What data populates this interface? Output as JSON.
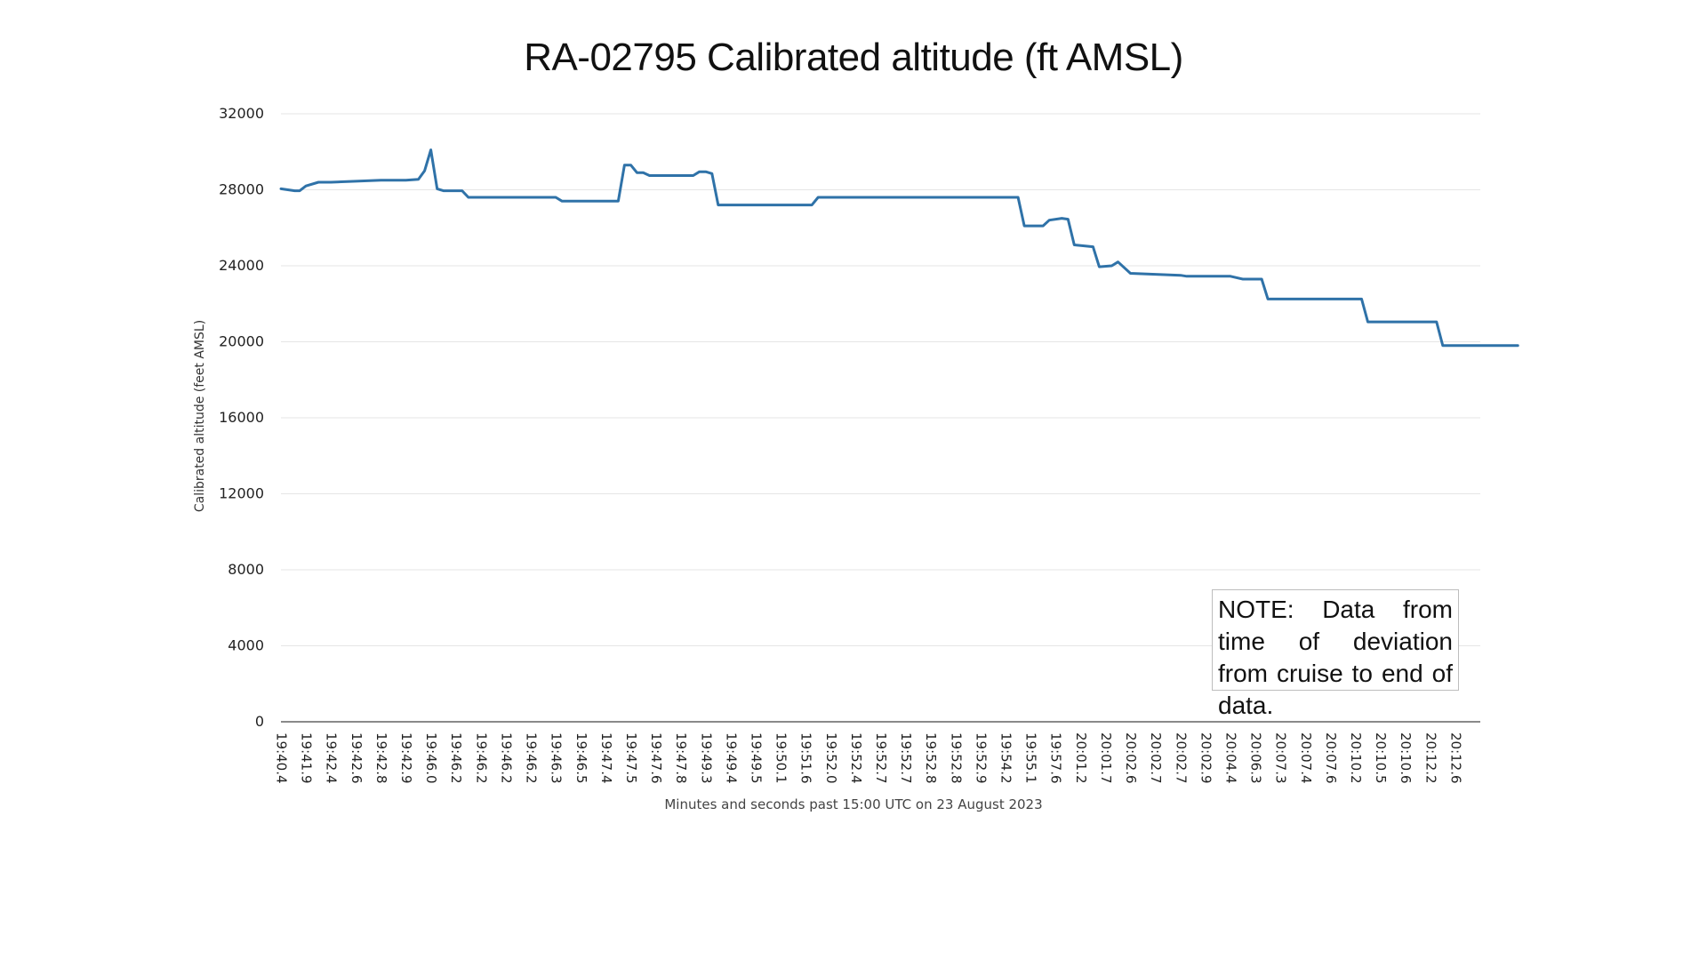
{
  "chart_data": {
    "type": "line",
    "title": "RA-02795 Calibrated altitude (ft AMSL)",
    "xlabel": "Minutes and seconds past 15:00 UTC on 23 August 2023",
    "ylabel": "Calibrated altitude (feet AMSL)",
    "ylim": [
      0,
      32000
    ],
    "yticks": [
      0,
      4000,
      8000,
      12000,
      16000,
      20000,
      24000,
      28000,
      32000
    ],
    "grid": true,
    "line_color": "#2f72a8",
    "annotation": "NOTE: Data from time of deviation from cruise to end of data.",
    "categories": [
      "19:40.4",
      "19:41.9",
      "19:42.4",
      "19:42.6",
      "19:42.8",
      "19:42.9",
      "19:46.0",
      "19:46.2",
      "19:46.2",
      "19:46.2",
      "19:46.2",
      "19:46.3",
      "19:46.5",
      "19:47.4",
      "19:47.5",
      "19:47.6",
      "19:47.8",
      "19:49.3",
      "19:49.4",
      "19:49.5",
      "19:50.1",
      "19:51.6",
      "19:52.0",
      "19:52.4",
      "19:52.7",
      "19:52.7",
      "19:52.8",
      "19:52.8",
      "19:52.9",
      "19:54.2",
      "19:55.1",
      "19:57.6",
      "20:01.2",
      "20:01.7",
      "20:02.6",
      "20:02.7",
      "20:02.7",
      "20:02.9",
      "20:04.4",
      "20:06.3",
      "20:07.3",
      "20:07.4",
      "20:07.6",
      "20:10.2",
      "20:10.5",
      "20:10.6",
      "20:12.2",
      "20:12.6"
    ],
    "series": [
      {
        "values": [
          [
            0,
            28050
          ],
          [
            0.55,
            27950
          ],
          [
            0.75,
            27950
          ],
          [
            1.0,
            28200
          ],
          [
            1.5,
            28400
          ],
          [
            2.0,
            28400
          ],
          [
            3.0,
            28450
          ],
          [
            4.0,
            28500
          ],
          [
            5.0,
            28500
          ],
          [
            5.5,
            28550
          ],
          [
            5.75,
            29000
          ],
          [
            6.0,
            30100
          ],
          [
            6.25,
            28050
          ],
          [
            6.5,
            27950
          ],
          [
            7.25,
            27950
          ],
          [
            7.5,
            27600
          ],
          [
            8.0,
            27600
          ],
          [
            11.0,
            27600
          ],
          [
            11.25,
            27400
          ],
          [
            13.5,
            27400
          ],
          [
            13.75,
            29300
          ],
          [
            14.0,
            29300
          ],
          [
            14.25,
            28900
          ],
          [
            14.5,
            28900
          ],
          [
            14.75,
            28750
          ],
          [
            16.5,
            28750
          ],
          [
            16.75,
            28950
          ],
          [
            17.0,
            28950
          ],
          [
            17.25,
            28850
          ],
          [
            17.5,
            27200
          ],
          [
            21.25,
            27200
          ],
          [
            21.5,
            27600
          ],
          [
            29.5,
            27600
          ],
          [
            29.75,
            26100
          ],
          [
            30.5,
            26100
          ],
          [
            30.75,
            26400
          ],
          [
            31.25,
            26500
          ],
          [
            31.5,
            26450
          ],
          [
            31.75,
            25100
          ],
          [
            32.5,
            25000
          ],
          [
            32.75,
            23950
          ],
          [
            33.25,
            24000
          ],
          [
            33.5,
            24200
          ],
          [
            34.0,
            23600
          ],
          [
            36.0,
            23500
          ],
          [
            36.25,
            23450
          ],
          [
            38.0,
            23450
          ],
          [
            38.5,
            23300
          ],
          [
            39.25,
            23300
          ],
          [
            39.5,
            22250
          ],
          [
            43.25,
            22250
          ],
          [
            43.5,
            21050
          ],
          [
            46.25,
            21050
          ],
          [
            46.5,
            19800
          ],
          [
            49.5,
            19800
          ]
        ]
      }
    ]
  }
}
